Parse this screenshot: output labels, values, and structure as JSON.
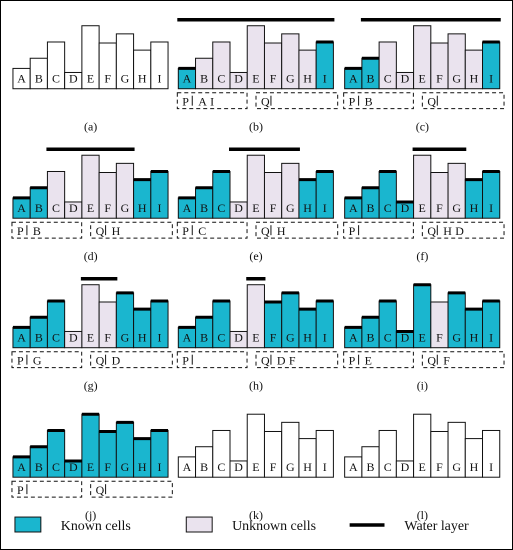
{
  "colors": {
    "known": "#1ab6cf",
    "unknown": "#eae3ee",
    "empty": "#ffffff",
    "outline": "#111111",
    "water": "#000000"
  },
  "cell_labels": [
    "A",
    "B",
    "C",
    "D",
    "E",
    "F",
    "G",
    "H",
    "I"
  ],
  "relative_heights": [
    2.0,
    3.0,
    4.6,
    1.6,
    6.2,
    4.5,
    5.4,
    3.8,
    4.6
  ],
  "panels": [
    {
      "label": "(a)",
      "cells": "WWWWWWWWW",
      "waterSegs": [],
      "knownTops": [],
      "p": null,
      "q": null
    },
    {
      "label": "(b)",
      "cells": "KUUUUUUUK",
      "waterSegs": [
        [
          0,
          8
        ]
      ],
      "knownTops": [
        0,
        8
      ],
      "p": {
        "text": "P",
        "marks": [
          "A",
          "I"
        ]
      },
      "q": {
        "text": "Q",
        "marks": []
      }
    },
    {
      "label": "(c)",
      "cells": "KKUUUUUUK",
      "waterSegs": [
        [
          1,
          8
        ]
      ],
      "knownTops": [
        0,
        1,
        8
      ],
      "p": {
        "text": "P",
        "marks": [
          "B"
        ]
      },
      "q": {
        "text": "Q",
        "marks": []
      }
    },
    {
      "label": "(d)",
      "cells": "KKUUUUUKK",
      "waterSegs": [
        [
          2,
          6
        ]
      ],
      "knownTops": [
        0,
        1,
        7,
        8
      ],
      "p": {
        "text": "P",
        "marks": [
          "B"
        ]
      },
      "q": {
        "text": "Q",
        "marks": [
          "H"
        ]
      }
    },
    {
      "label": "(e)",
      "cells": "KKKUUUUKK",
      "waterSegs": [
        [
          3,
          6
        ]
      ],
      "knownTops": [
        0,
        1,
        2,
        7,
        8
      ],
      "p": {
        "text": "P",
        "marks": [
          "C"
        ]
      },
      "q": {
        "text": "Q",
        "marks": [
          "H"
        ]
      }
    },
    {
      "label": "(f)",
      "cells": "KKKKUUUKK",
      "waterSegs": [
        [
          4,
          6
        ]
      ],
      "knownTops": [
        0,
        1,
        2,
        3,
        7,
        8
      ],
      "p": {
        "text": "P",
        "marks": []
      },
      "q": {
        "text": "Q",
        "marks": [
          "H",
          "D"
        ]
      }
    },
    {
      "label": "(g)",
      "cells": "KKKUUUKKK",
      "waterSegs": [
        [
          4,
          5
        ]
      ],
      "knownTops": [
        0,
        1,
        2,
        6,
        7,
        8
      ],
      "p": {
        "text": "P",
        "marks": [
          "G"
        ]
      },
      "q": {
        "text": "Q",
        "marks": [
          "D"
        ]
      }
    },
    {
      "label": "(h)",
      "cells": "KKKUUKKKK",
      "waterSegs": [
        [
          4,
          4
        ]
      ],
      "knownTops": [
        0,
        1,
        2,
        5,
        6,
        7,
        8
      ],
      "p": {
        "text": "P",
        "marks": []
      },
      "q": {
        "text": "Q",
        "marks": [
          "D",
          "F"
        ]
      }
    },
    {
      "label": "(i)",
      "cells": "KKKKKUKKK",
      "waterSegs": [],
      "knownTops": [
        0,
        1,
        2,
        3,
        4,
        6,
        7,
        8
      ],
      "p": {
        "text": "P",
        "marks": [
          "E"
        ]
      },
      "q": {
        "text": "Q",
        "marks": [
          "F"
        ]
      }
    },
    {
      "label": "(j)",
      "cells": "KKKKKKKKK",
      "waterSegs": [],
      "knownTops": [
        0,
        1,
        2,
        3,
        4,
        5,
        6,
        7,
        8
      ],
      "p": {
        "text": "P",
        "marks": []
      },
      "q": {
        "text": "Q",
        "marks": []
      }
    },
    {
      "label": "(k)",
      "cells": "WWWWWWWWW",
      "waterSegs": [],
      "knownTops": [],
      "p": null,
      "q": null
    },
    {
      "label": "(l)",
      "cells": "WWWWWWWWW",
      "waterSegs": [],
      "knownTops": [],
      "p": null,
      "q": null
    }
  ],
  "legend": {
    "known_label": "Known cells",
    "unknown_label": "Unknown cells",
    "water_label": "Water layer"
  }
}
